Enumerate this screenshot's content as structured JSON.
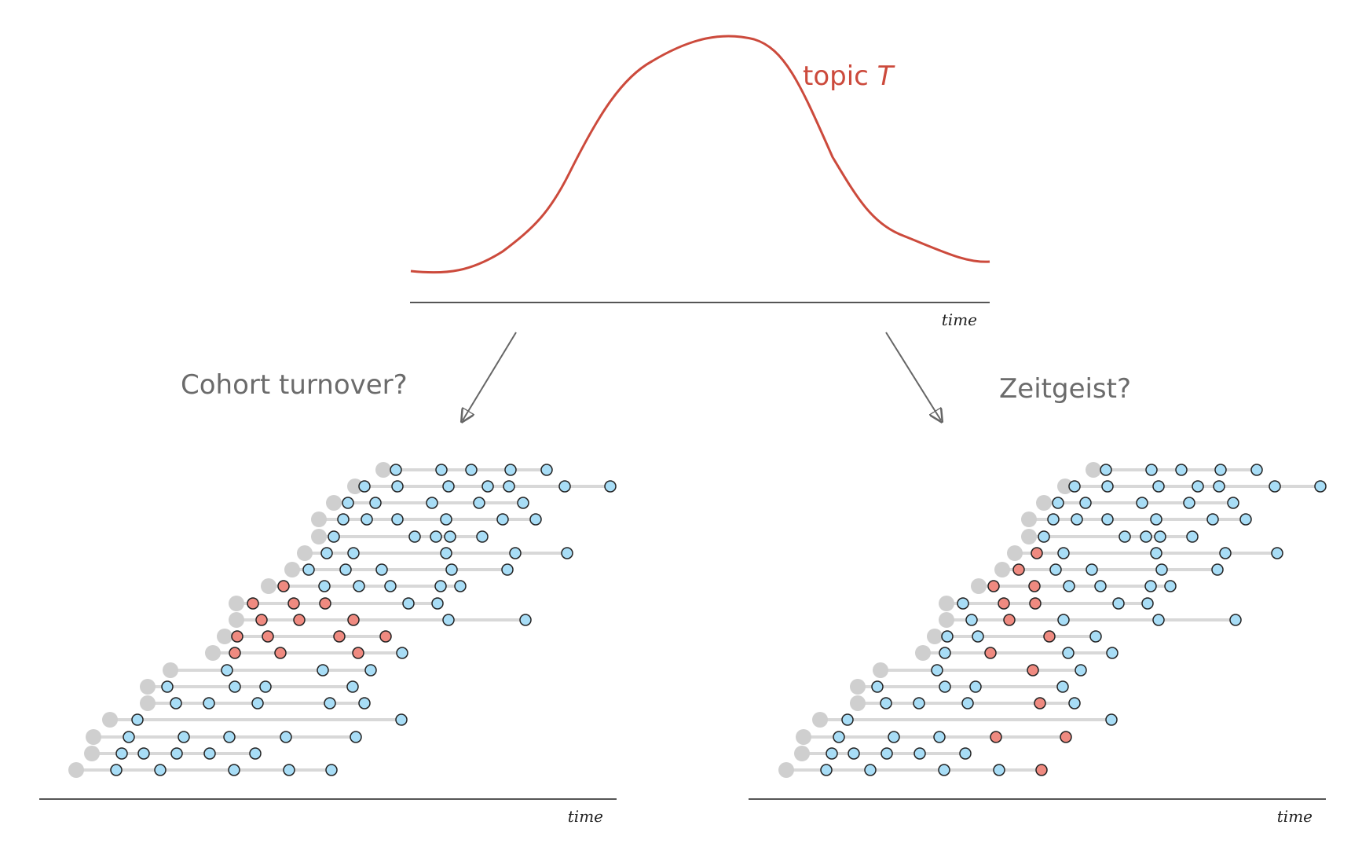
{
  "top_curve": {
    "label_main": "topic ",
    "label_var": "T",
    "axis_label": "time",
    "color": "#cc4a3c"
  },
  "left_panel": {
    "question": "Cohort turnover?",
    "axis_label": "time"
  },
  "right_panel": {
    "question": "Zeitgeist?",
    "axis_label": "time"
  },
  "colors": {
    "line": "#d8d8d8",
    "start_dot": "#cfcfcf",
    "blue_dot": "#a8ddf6",
    "red_dot": "#ef8a80",
    "dot_stroke": "#222222",
    "axis": "#555555",
    "label": "#6b6b6b",
    "arrow": "#666666"
  }
}
